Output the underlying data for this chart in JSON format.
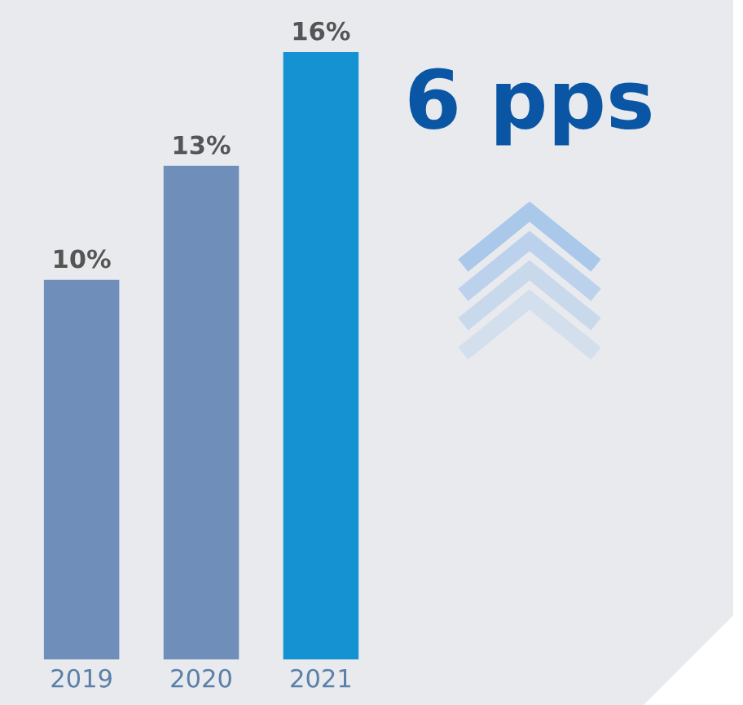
{
  "chart_data": {
    "type": "bar",
    "categories": [
      "2019",
      "2020",
      "2021"
    ],
    "values": [
      10,
      13,
      16
    ],
    "colors": [
      "#6f8fba",
      "#6f8fba",
      "#1592d2"
    ],
    "value_labels": [
      "10%",
      "13%",
      "16%"
    ],
    "annotations": [
      "6 pps"
    ],
    "grid": false,
    "legend": false
  }
}
